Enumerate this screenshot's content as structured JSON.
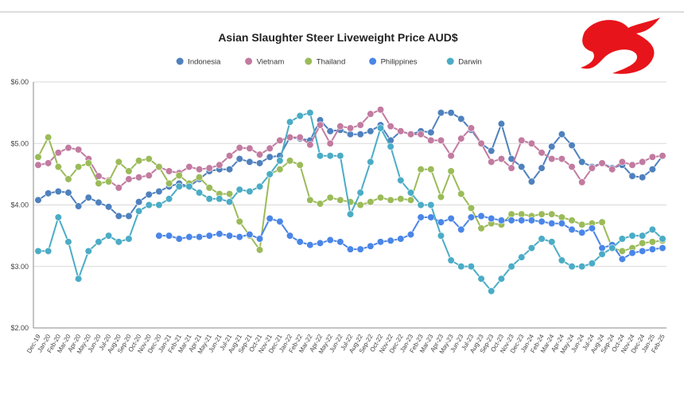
{
  "chart_data": {
    "type": "line",
    "title": "Asian Slaughter Steer Liveweight Price AUD$",
    "categories": [
      "Dec-19",
      "Jan-20",
      "Feb-20",
      "Mar-20",
      "Apr-20",
      "May-20",
      "Jun-20",
      "Jul-20",
      "Aug-20",
      "Sep-20",
      "Oct-20",
      "Nov-20",
      "Dec-20",
      "Jan-21",
      "Feb-21",
      "Mar-21",
      "Apr-21",
      "May-21",
      "Jun-21",
      "Jul-21",
      "Aug-21",
      "Sep-21",
      "Oct-21",
      "Nov-21",
      "Dec-21",
      "Jan-22",
      "Feb-22",
      "Mar-22",
      "Apr-22",
      "May-22",
      "Jun-22",
      "Jul-22",
      "Aug-22",
      "Sep-22",
      "Oct-22",
      "Nov-22",
      "Dec-22",
      "Jan-23",
      "Feb-23",
      "Mar-23",
      "Apr-23",
      "May-23",
      "Jun-23",
      "Jul-23",
      "Aug-23",
      "Sep-23",
      "Oct-23",
      "Nov-23",
      "Dec-23",
      "Jan-24",
      "Feb-24",
      "Mar-24",
      "Apr-24",
      "May-24",
      "Jun-24",
      "Jul-24",
      "Aug-24",
      "Sep-24",
      "Oct-24",
      "Nov-24",
      "Dec-24",
      "Jan-25",
      "Feb-25"
    ],
    "series": [
      {
        "name": "Indonesia",
        "color": "#4f81bd",
        "values": [
          4.08,
          4.19,
          4.22,
          4.2,
          3.98,
          4.12,
          4.04,
          3.97,
          3.82,
          3.82,
          4.05,
          4.17,
          4.22,
          4.3,
          4.35,
          4.3,
          4.42,
          4.55,
          4.58,
          4.58,
          4.75,
          4.7,
          4.68,
          4.78,
          4.8,
          5.1,
          5.08,
          5.05,
          5.38,
          5.2,
          5.22,
          5.15,
          5.15,
          5.2,
          5.3,
          5.05,
          5.2,
          5.15,
          5.2,
          5.18,
          5.5,
          5.5,
          5.4,
          5.22,
          5.0,
          4.88,
          5.32,
          4.75,
          4.62,
          4.38,
          4.6,
          4.95,
          5.15,
          4.97,
          4.7,
          4.62,
          4.68,
          4.6,
          4.65,
          4.47,
          4.45,
          4.58,
          4.8
        ]
      },
      {
        "name": "Vietnam",
        "color": "#c27ba0",
        "values": [
          4.65,
          4.68,
          4.85,
          4.93,
          4.9,
          4.75,
          4.47,
          4.4,
          4.28,
          4.42,
          4.45,
          4.48,
          4.62,
          4.55,
          4.52,
          4.62,
          4.58,
          4.6,
          4.65,
          4.8,
          4.93,
          4.92,
          4.82,
          4.92,
          5.05,
          5.1,
          5.1,
          4.98,
          5.3,
          5.0,
          5.28,
          5.25,
          5.3,
          5.48,
          5.55,
          5.28,
          5.2,
          5.15,
          5.15,
          5.05,
          5.05,
          4.8,
          5.08,
          5.25,
          5.0,
          4.7,
          4.75,
          4.6,
          5.05,
          5.0,
          4.85,
          4.75,
          4.75,
          4.62,
          4.37,
          4.6,
          4.68,
          4.58,
          4.7,
          4.65,
          4.7,
          4.78,
          4.8
        ]
      },
      {
        "name": "Thailand",
        "color": "#9bbb59",
        "values": [
          4.78,
          5.1,
          4.62,
          4.42,
          4.62,
          4.68,
          4.35,
          4.38,
          4.7,
          4.55,
          4.72,
          4.75,
          4.62,
          4.35,
          4.48,
          4.35,
          4.45,
          4.28,
          4.18,
          4.18,
          3.73,
          3.5,
          3.27,
          4.5,
          4.58,
          4.72,
          4.65,
          4.08,
          4.02,
          4.12,
          4.08,
          4.05,
          4.0,
          4.05,
          4.12,
          4.08,
          4.1,
          4.08,
          4.58,
          4.58,
          4.13,
          4.55,
          4.18,
          3.95,
          3.62,
          3.7,
          3.68,
          3.85,
          3.85,
          3.82,
          3.85,
          3.85,
          3.8,
          3.75,
          3.68,
          3.7,
          3.72,
          3.3,
          3.25,
          3.3,
          3.38,
          3.4,
          3.42
        ]
      },
      {
        "name": "Philippines",
        "color": "#4a86e8",
        "values": [
          null,
          null,
          null,
          null,
          null,
          null,
          null,
          null,
          null,
          null,
          null,
          null,
          3.5,
          3.5,
          3.45,
          3.48,
          3.48,
          3.5,
          3.53,
          3.5,
          3.48,
          3.52,
          3.45,
          3.78,
          3.73,
          3.5,
          3.4,
          3.35,
          3.38,
          3.43,
          3.4,
          3.28,
          3.28,
          3.33,
          3.4,
          3.42,
          3.45,
          3.52,
          3.8,
          3.8,
          3.72,
          3.78,
          3.6,
          3.8,
          3.82,
          3.78,
          3.75,
          3.75,
          3.75,
          3.75,
          3.73,
          3.7,
          3.7,
          3.6,
          3.55,
          3.62,
          3.3,
          3.35,
          3.12,
          3.22,
          3.25,
          3.28,
          3.3
        ]
      },
      {
        "name": "Darwin",
        "color": "#4bacc6",
        "values": [
          3.25,
          3.25,
          3.8,
          3.4,
          2.8,
          3.25,
          3.4,
          3.5,
          3.4,
          3.45,
          3.9,
          4.0,
          4.0,
          4.1,
          4.3,
          4.3,
          4.2,
          4.1,
          4.1,
          4.05,
          4.25,
          4.22,
          4.3,
          4.5,
          4.72,
          5.35,
          5.45,
          5.5,
          4.8,
          4.8,
          4.8,
          3.85,
          4.2,
          4.7,
          5.25,
          4.95,
          4.4,
          4.2,
          4.0,
          4.0,
          3.5,
          3.1,
          3.0,
          3.0,
          2.8,
          2.6,
          2.8,
          3.0,
          3.15,
          3.3,
          3.45,
          3.4,
          3.1,
          3.0,
          3.0,
          3.05,
          3.2,
          3.3,
          3.45,
          3.5,
          3.5,
          3.6,
          3.45
        ]
      }
    ],
    "ylim": [
      2,
      6
    ],
    "yticks": [
      {
        "value": 2,
        "label": "$2.00"
      },
      {
        "value": 3,
        "label": "$3.00"
      },
      {
        "value": 4,
        "label": "$4.00"
      },
      {
        "value": 5,
        "label": "$5.00"
      },
      {
        "value": 6,
        "label": "$6.00"
      }
    ],
    "grid": true,
    "legend": "top"
  }
}
